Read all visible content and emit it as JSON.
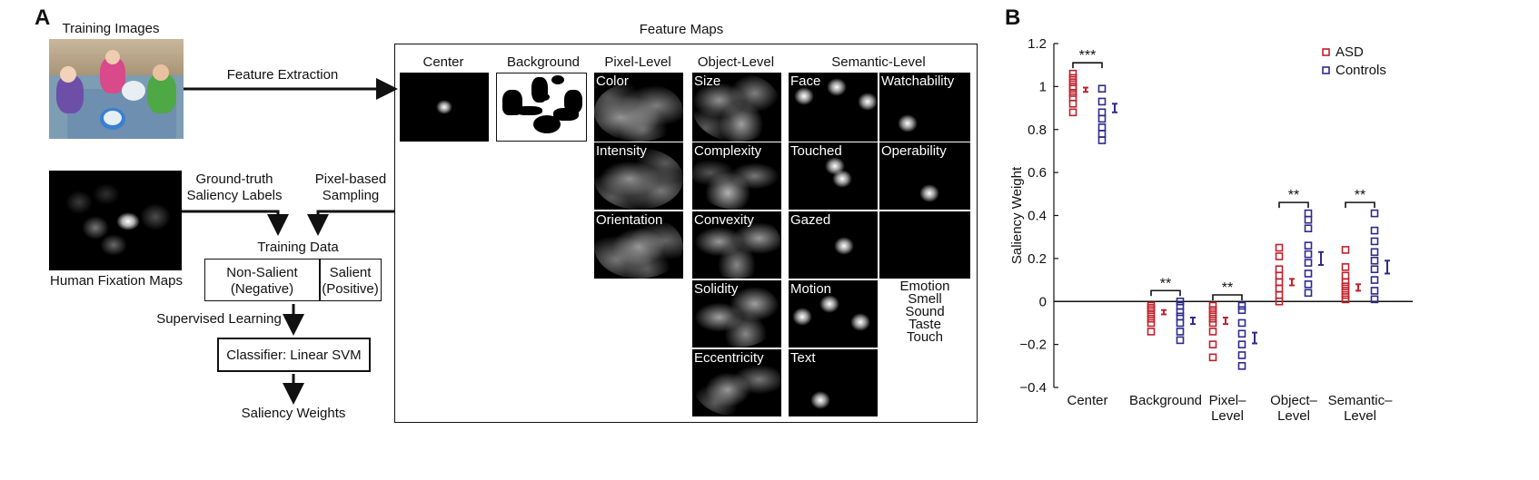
{
  "panel_a": {
    "letter": "A",
    "training_images": "Training Images",
    "feature_extraction": "Feature Extraction",
    "human_fixation_maps": "Human Fixation Maps",
    "ground_truth_1": "Ground-truth",
    "ground_truth_2": "Saliency Labels",
    "pixel_based_1": "Pixel-based",
    "pixel_based_2": "Sampling",
    "training_data": "Training Data",
    "non_salient_1": "Non-Salient",
    "non_salient_2": "(Negative)",
    "salient_1": "Salient",
    "salient_2": "(Positive)",
    "supervised_learning": "Supervised Learning",
    "classifier": "Classifier: Linear SVM",
    "saliency_weights": "Saliency Weights",
    "feature_maps_title": "Feature Maps",
    "col_headers": {
      "center": "Center",
      "background": "Background",
      "pixel": "Pixel-Level",
      "object": "Object-Level",
      "semantic": "Semantic-Level"
    },
    "maps": {
      "color": "Color",
      "intensity": "Intensity",
      "orientation": "Orientation",
      "size": "Size",
      "complexity": "Complexity",
      "convexity": "Convexity",
      "solidity": "Solidity",
      "eccentricity": "Eccentricity",
      "face": "Face",
      "touched": "Touched",
      "gazed": "Gazed",
      "motion": "Motion",
      "text": "Text",
      "watchability": "Watchability",
      "operability": "Operability"
    },
    "unmapped": [
      "Emotion",
      "Smell",
      "Sound",
      "Taste",
      "Touch"
    ]
  },
  "panel_b": {
    "letter": "B",
    "colors": {
      "asd": "#c0202a",
      "controls": "#2e2a8c"
    }
  },
  "chart_data": {
    "type": "scatter",
    "ylabel": "Saliency Weight",
    "xlabel": "",
    "ylim": [
      -0.4,
      1.2
    ],
    "yticks": [
      "−0.4",
      "−0.2",
      "0",
      "0.2",
      "0.4",
      "0.6",
      "0.8",
      "1",
      "1.2"
    ],
    "categories": [
      "Center",
      "Background",
      "Pixel–\nLevel",
      "Object–\nLevel",
      "Semantic–\nLevel"
    ],
    "legend_position": "top-right",
    "series": [
      {
        "name": "ASD",
        "color": "#c0202a",
        "points": [
          [
            0.88,
            0.92,
            0.95,
            0.97,
            0.99,
            1.0,
            1.02,
            1.04,
            1.06
          ],
          [
            -0.14,
            -0.1,
            -0.08,
            -0.06,
            -0.04,
            -0.03,
            -0.02
          ],
          [
            -0.26,
            -0.2,
            -0.14,
            -0.1,
            -0.08,
            -0.06,
            -0.04,
            -0.02
          ],
          [
            0.0,
            0.03,
            0.06,
            0.09,
            0.12,
            0.15,
            0.21,
            0.25
          ],
          [
            0.01,
            0.03,
            0.05,
            0.07,
            0.09,
            0.12,
            0.16,
            0.24
          ]
        ],
        "mean": [
          0.985,
          -0.05,
          -0.09,
          0.09,
          0.065
        ],
        "sem": [
          0.01,
          0.01,
          0.015,
          0.015,
          0.015
        ]
      },
      {
        "name": "Controls",
        "color": "#2e2a8c",
        "points": [
          [
            0.75,
            0.78,
            0.81,
            0.85,
            0.88,
            0.93,
            0.99
          ],
          [
            -0.18,
            -0.14,
            -0.1,
            -0.07,
            -0.05,
            -0.02,
            0.0
          ],
          [
            -0.3,
            -0.25,
            -0.2,
            -0.15,
            -0.1,
            -0.04,
            -0.02
          ],
          [
            0.04,
            0.08,
            0.13,
            0.18,
            0.22,
            0.26,
            0.34,
            0.38,
            0.41
          ],
          [
            0.01,
            0.05,
            0.1,
            0.15,
            0.19,
            0.23,
            0.28,
            0.33,
            0.41
          ]
        ],
        "mean": [
          0.9,
          -0.09,
          -0.17,
          0.2,
          0.16
        ],
        "sem": [
          0.02,
          0.015,
          0.025,
          0.03,
          0.03
        ]
      }
    ],
    "significance": [
      "***",
      "**",
      "**",
      "**",
      "**"
    ]
  }
}
